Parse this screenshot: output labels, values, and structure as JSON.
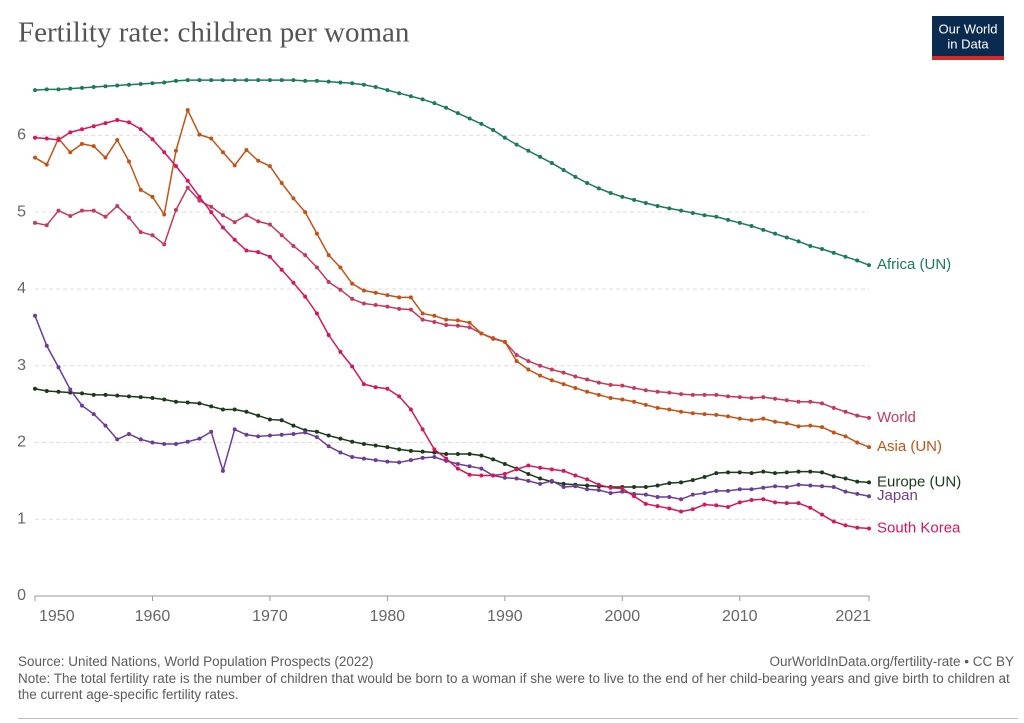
{
  "chart_data": {
    "type": "line",
    "title": "Fertility rate: children per woman",
    "logo": [
      "Our World",
      "in Data"
    ],
    "source": "Source: United Nations, World Population Prospects (2022)",
    "url": "OurWorldInData.org/fertility-rate • CC BY",
    "note": "Note: The total fertility rate is the number of children that would be born to a woman if she were to live to the end of her child-bearing years and give birth to children at the current age-specific fertility rates.",
    "xlim": [
      1950,
      2021
    ],
    "xticks": [
      1950,
      1960,
      1970,
      1980,
      1990,
      2000,
      2010,
      2021
    ],
    "ylim": [
      0,
      6.8
    ],
    "yticks": [
      0,
      1,
      2,
      3,
      4,
      5,
      6
    ],
    "grid": true,
    "x": [
      1950,
      1951,
      1952,
      1953,
      1954,
      1955,
      1956,
      1957,
      1958,
      1959,
      1960,
      1961,
      1962,
      1963,
      1964,
      1965,
      1966,
      1967,
      1968,
      1969,
      1970,
      1971,
      1972,
      1973,
      1974,
      1975,
      1976,
      1977,
      1978,
      1979,
      1980,
      1981,
      1982,
      1983,
      1984,
      1985,
      1986,
      1987,
      1988,
      1989,
      1990,
      1991,
      1992,
      1993,
      1994,
      1995,
      1996,
      1997,
      1998,
      1999,
      2000,
      2001,
      2002,
      2003,
      2004,
      2005,
      2006,
      2007,
      2008,
      2009,
      2010,
      2011,
      2012,
      2013,
      2014,
      2015,
      2016,
      2017,
      2018,
      2019,
      2020,
      2021
    ],
    "series": [
      {
        "name": "Africa (UN)",
        "color": "#1b7a58",
        "values": [
          6.59,
          6.6,
          6.6,
          6.61,
          6.62,
          6.63,
          6.64,
          6.65,
          6.66,
          6.67,
          6.68,
          6.69,
          6.71,
          6.72,
          6.72,
          6.72,
          6.72,
          6.72,
          6.72,
          6.72,
          6.72,
          6.72,
          6.72,
          6.71,
          6.71,
          6.7,
          6.69,
          6.68,
          6.66,
          6.63,
          6.59,
          6.55,
          6.51,
          6.47,
          6.42,
          6.36,
          6.29,
          6.22,
          6.15,
          6.07,
          5.97,
          5.88,
          5.8,
          5.72,
          5.64,
          5.55,
          5.46,
          5.38,
          5.31,
          5.25,
          5.2,
          5.16,
          5.12,
          5.08,
          5.05,
          5.02,
          4.99,
          4.96,
          4.94,
          4.9,
          4.86,
          4.82,
          4.77,
          4.72,
          4.67,
          4.62,
          4.56,
          4.52,
          4.47,
          4.42,
          4.37,
          4.31
        ]
      },
      {
        "name": "World",
        "color": "#c13a5f",
        "values": [
          4.86,
          4.83,
          5.02,
          4.95,
          5.02,
          5.02,
          4.94,
          5.08,
          4.93,
          4.74,
          4.7,
          4.58,
          5.03,
          5.32,
          5.15,
          5.07,
          4.96,
          4.87,
          4.96,
          4.88,
          4.84,
          4.7,
          4.56,
          4.44,
          4.28,
          4.09,
          3.99,
          3.87,
          3.81,
          3.79,
          3.77,
          3.74,
          3.73,
          3.6,
          3.57,
          3.53,
          3.52,
          3.5,
          3.42,
          3.36,
          3.31,
          3.14,
          3.06,
          3.0,
          2.95,
          2.91,
          2.86,
          2.82,
          2.78,
          2.75,
          2.74,
          2.71,
          2.68,
          2.66,
          2.65,
          2.63,
          2.62,
          2.62,
          2.62,
          2.6,
          2.59,
          2.58,
          2.59,
          2.57,
          2.55,
          2.53,
          2.53,
          2.51,
          2.45,
          2.4,
          2.35,
          2.32
        ]
      },
      {
        "name": "Asia (UN)",
        "color": "#c05418",
        "values": [
          5.71,
          5.62,
          5.96,
          5.78,
          5.89,
          5.86,
          5.71,
          5.94,
          5.66,
          5.29,
          5.2,
          4.97,
          5.8,
          6.33,
          6.01,
          5.96,
          5.78,
          5.61,
          5.81,
          5.67,
          5.6,
          5.38,
          5.18,
          5.0,
          4.72,
          4.44,
          4.28,
          4.07,
          3.98,
          3.95,
          3.92,
          3.89,
          3.89,
          3.68,
          3.65,
          3.6,
          3.59,
          3.56,
          3.42,
          3.35,
          3.31,
          3.06,
          2.95,
          2.87,
          2.81,
          2.76,
          2.71,
          2.66,
          2.62,
          2.58,
          2.56,
          2.53,
          2.49,
          2.45,
          2.43,
          2.4,
          2.38,
          2.37,
          2.36,
          2.34,
          2.31,
          2.29,
          2.31,
          2.27,
          2.25,
          2.21,
          2.22,
          2.2,
          2.13,
          2.08,
          2.0,
          1.94
        ]
      },
      {
        "name": "Europe (UN)",
        "color": "#1b3a1b",
        "values": [
          2.7,
          2.67,
          2.66,
          2.65,
          2.64,
          2.62,
          2.62,
          2.61,
          2.6,
          2.59,
          2.58,
          2.56,
          2.53,
          2.52,
          2.51,
          2.47,
          2.43,
          2.43,
          2.4,
          2.35,
          2.3,
          2.29,
          2.22,
          2.16,
          2.14,
          2.09,
          2.05,
          2.01,
          1.98,
          1.96,
          1.94,
          1.91,
          1.89,
          1.88,
          1.87,
          1.85,
          1.85,
          1.85,
          1.83,
          1.78,
          1.72,
          1.66,
          1.59,
          1.53,
          1.49,
          1.46,
          1.45,
          1.44,
          1.43,
          1.42,
          1.42,
          1.42,
          1.42,
          1.44,
          1.47,
          1.48,
          1.51,
          1.55,
          1.6,
          1.61,
          1.61,
          1.6,
          1.62,
          1.6,
          1.61,
          1.62,
          1.62,
          1.61,
          1.56,
          1.53,
          1.49,
          1.48
        ]
      },
      {
        "name": "Japan",
        "color": "#6b3d94",
        "values": [
          3.65,
          3.26,
          2.98,
          2.69,
          2.48,
          2.37,
          2.22,
          2.04,
          2.11,
          2.04,
          2.0,
          1.98,
          1.98,
          2.01,
          2.05,
          2.14,
          1.63,
          2.17,
          2.1,
          2.08,
          2.09,
          2.1,
          2.11,
          2.13,
          2.07,
          1.95,
          1.87,
          1.81,
          1.79,
          1.77,
          1.75,
          1.74,
          1.77,
          1.8,
          1.81,
          1.76,
          1.72,
          1.69,
          1.66,
          1.57,
          1.54,
          1.53,
          1.5,
          1.46,
          1.5,
          1.42,
          1.43,
          1.39,
          1.38,
          1.34,
          1.36,
          1.33,
          1.32,
          1.29,
          1.29,
          1.26,
          1.32,
          1.34,
          1.37,
          1.37,
          1.39,
          1.39,
          1.41,
          1.43,
          1.42,
          1.45,
          1.44,
          1.43,
          1.42,
          1.36,
          1.33,
          1.3
        ]
      },
      {
        "name": "South Korea",
        "color": "#d3185a",
        "values": [
          5.97,
          5.96,
          5.94,
          6.04,
          6.08,
          6.12,
          6.16,
          6.2,
          6.17,
          6.08,
          5.95,
          5.78,
          5.6,
          5.41,
          5.2,
          5.0,
          4.8,
          4.64,
          4.5,
          4.48,
          4.42,
          4.25,
          4.08,
          3.9,
          3.68,
          3.4,
          3.18,
          2.99,
          2.76,
          2.72,
          2.7,
          2.6,
          2.43,
          2.17,
          1.91,
          1.79,
          1.66,
          1.58,
          1.57,
          1.57,
          1.59,
          1.65,
          1.7,
          1.67,
          1.65,
          1.63,
          1.57,
          1.52,
          1.45,
          1.41,
          1.4,
          1.3,
          1.2,
          1.17,
          1.14,
          1.1,
          1.13,
          1.19,
          1.18,
          1.16,
          1.22,
          1.25,
          1.26,
          1.22,
          1.21,
          1.21,
          1.15,
          1.06,
          0.97,
          0.92,
          0.89,
          0.88
        ]
      }
    ]
  }
}
